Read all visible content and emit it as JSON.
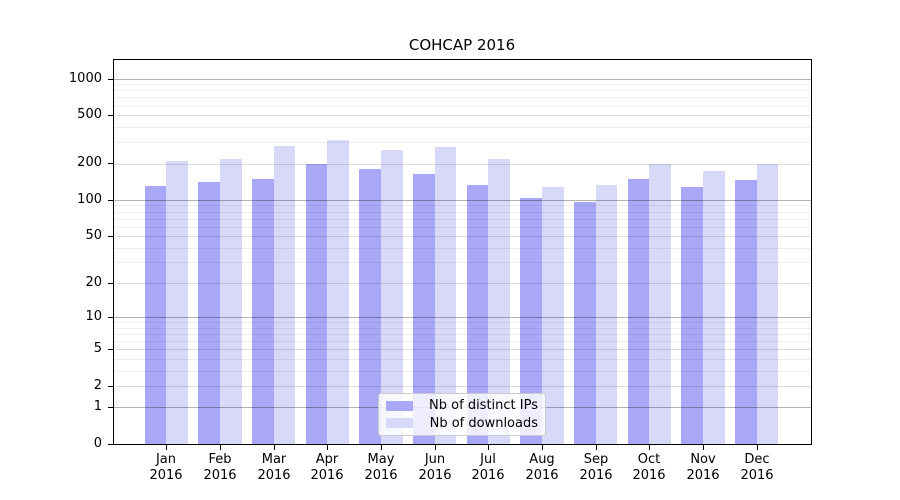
{
  "chart_data": {
    "type": "bar",
    "title": "COHCAP 2016",
    "categories": [
      "Jan",
      "Feb",
      "Mar",
      "Apr",
      "May",
      "Jun",
      "Jul",
      "Aug",
      "Sep",
      "Oct",
      "Nov",
      "Dec"
    ],
    "year_label": "2016",
    "series": [
      {
        "name": "Nb of distinct IPs",
        "color": "#a8a8f7",
        "values": [
          131,
          141,
          149,
          199,
          181,
          165,
          134,
          104,
          96,
          148,
          129,
          147
        ]
      },
      {
        "name": "Nb of downloads",
        "color": "#d8d8f8",
        "values": [
          211,
          218,
          277,
          310,
          260,
          273,
          218,
          127,
          132,
          197,
          175,
          197
        ]
      }
    ],
    "yscale": "log1p",
    "yticks": [
      0,
      1,
      2,
      5,
      10,
      20,
      50,
      100,
      200,
      500,
      1000
    ],
    "ytick_labels": [
      "0",
      "1",
      "2",
      "5",
      "10",
      "20",
      "50",
      "100",
      "200",
      "500",
      "1000"
    ],
    "ylim": [
      0,
      1450
    ],
    "xlabel": "",
    "ylabel": "",
    "grid": true,
    "legend_position": "lower-center"
  }
}
